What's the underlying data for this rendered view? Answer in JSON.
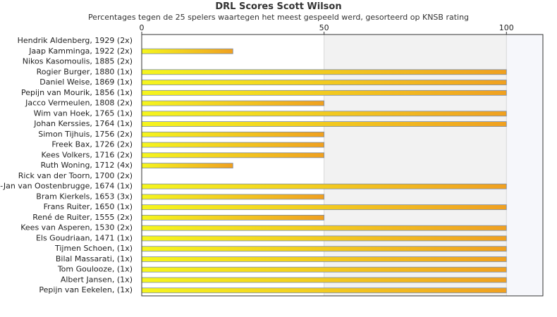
{
  "chart_data": {
    "type": "bar",
    "orientation": "horizontal",
    "title": "DRL Scores Scott Wilson",
    "subtitle": "Percentages tegen de 25 spelers waartegen het meest gespeeld werd, gesorteerd op KNSB rating",
    "xlabel": "",
    "ylabel": "",
    "xlim": [
      0,
      110
    ],
    "x_ticks": [
      "0",
      "50",
      "100"
    ],
    "grid": true,
    "categories": [
      "Hendrik Aldenberg, 1929 (2x)",
      "Jaap Kamminga, 1922 (2x)",
      "Nikos Kasomoulis, 1885 (2x)",
      "Rogier Burger, 1880 (1x)",
      "Daniel Weise, 1869 (1x)",
      "Pepijn van Mourik, 1856 (1x)",
      "Jacco Vermeulen, 1808 (2x)",
      "Wim van Hoek, 1765 (1x)",
      "Johan Kerssies, 1764 (1x)",
      "Simon Tijhuis, 1756 (2x)",
      "Freek Bax, 1726 (2x)",
      "Kees Volkers, 1716 (2x)",
      "Ruth Woning, 1712 (4x)",
      "Rick van der Toorn, 1700 (2x)",
      "Gert-Jan van Oostenbrugge, 1674 (1x)",
      "Bram Kierkels, 1653 (3x)",
      "Frans Ruiter, 1650 (1x)",
      "René de Ruiter, 1555 (2x)",
      "Kees van Asperen, 1530 (2x)",
      "Els Goudriaan, 1471 (1x)",
      "Tijmen Schoen,  (1x)",
      "Bilal Massarati,  (1x)",
      "Tom Goulooze,  (1x)",
      "Albert Jansen,  (1x)",
      "Pepijn van Eekelen,  (1x)"
    ],
    "values": [
      0,
      25,
      0,
      100,
      100,
      100,
      50,
      100,
      100,
      50,
      50,
      50,
      25,
      0,
      100,
      50,
      100,
      50,
      100,
      100,
      100,
      100,
      100,
      100,
      100
    ],
    "colors": {
      "bar_start": "#f5f51e",
      "bar_end": "#f0a020",
      "bar_border": "#7a8fb0",
      "band_alt": "#f2f2f2",
      "band_end": "#f6f7fb",
      "axis": "#333333",
      "grid": "#d8d8d8"
    }
  }
}
